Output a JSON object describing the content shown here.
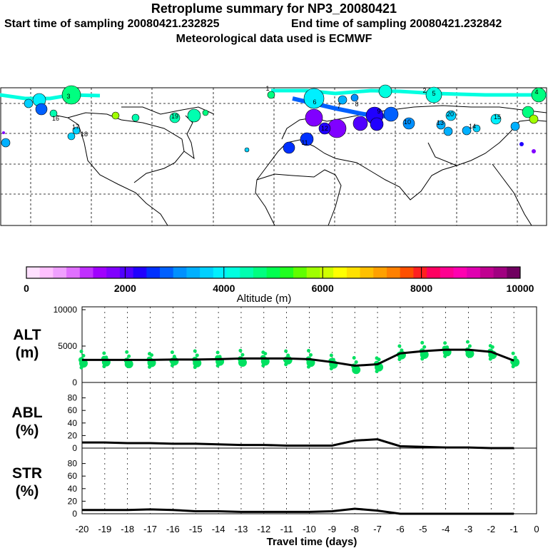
{
  "header": {
    "title": "Retroplume summary for NP3_20080421",
    "start_label": "Start time of sampling 20080421.232825",
    "end_label": "End time of sampling 20080421.232842",
    "meteo_label": "Meteorological data used is ECMWF"
  },
  "map": {
    "description_labels": [
      "1",
      "2",
      "3",
      "4",
      "5",
      "6",
      "7",
      "8",
      "9",
      "10",
      "11",
      "12",
      "13",
      "14",
      "15",
      "16",
      "17",
      "18",
      "19",
      "20"
    ]
  },
  "colorbar": {
    "title": "Altitude (m)",
    "ticks": [
      "0",
      "2000",
      "4000",
      "6000",
      "8000",
      "10000"
    ],
    "colors": [
      "#ffe0ff",
      "#ffc0ff",
      "#f0a0ff",
      "#e070ff",
      "#c030ff",
      "#a000ff",
      "#8000ff",
      "#5000ff",
      "#2000ff",
      "#0030ff",
      "#0060ff",
      "#0090ff",
      "#00b0ff",
      "#00d0ff",
      "#00f0ff",
      "#00ffe0",
      "#00ffb0",
      "#00ff80",
      "#00ff50",
      "#20ff20",
      "#60ff00",
      "#a0ff00",
      "#d0ff00",
      "#ffff00",
      "#ffe000",
      "#ffc000",
      "#ffa000",
      "#ff8000",
      "#ff5000",
      "#ff2020",
      "#ff0060",
      "#ff0090",
      "#ff00b0",
      "#e000b0",
      "#c00090",
      "#a00080",
      "#700060"
    ]
  },
  "panels": {
    "alt": {
      "label_line1": "ALT",
      "label_line2": "(m)",
      "yticks": [
        "10000",
        "5000",
        "0"
      ]
    },
    "abl": {
      "label_line1": "ABL",
      "label_line2": "(%)",
      "yticks": [
        "80",
        "60",
        "40",
        "20",
        "0"
      ]
    },
    "str": {
      "label_line1": "STR",
      "label_line2": "(%)",
      "yticks": [
        "80",
        "60",
        "40",
        "20",
        "0"
      ]
    }
  },
  "xaxis": {
    "label": "Travel time (days)",
    "ticks": [
      "-20",
      "-19",
      "-18",
      "-17",
      "-16",
      "-15",
      "-14",
      "-13",
      "-12",
      "-11",
      "-10",
      "-9",
      "-8",
      "-7",
      "-6",
      "-5",
      "-4",
      "-3",
      "-2",
      "-1",
      "0"
    ]
  },
  "chart_data": [
    {
      "type": "line",
      "title": "ALT (m)",
      "xlabel": "Travel time (days)",
      "ylabel": "ALT (m)",
      "xlim": [
        -20,
        0
      ],
      "ylim": [
        0,
        10000
      ],
      "x": [
        -20,
        -19,
        -18,
        -17,
        -16,
        -15,
        -14,
        -13,
        -12,
        -11,
        -10,
        -9,
        -8,
        -7,
        -6,
        -5,
        -4,
        -3,
        -2,
        -1
      ],
      "series": [
        {
          "name": "mean altitude",
          "values": [
            3100,
            3100,
            3100,
            3100,
            3150,
            3150,
            3200,
            3300,
            3300,
            3300,
            3200,
            2800,
            2300,
            2500,
            4000,
            4300,
            4500,
            4500,
            4200,
            3000
          ]
        }
      ]
    },
    {
      "type": "line",
      "title": "ABL (%)",
      "xlabel": "Travel time (days)",
      "ylabel": "ABL (%)",
      "xlim": [
        -20,
        0
      ],
      "ylim": [
        0,
        100
      ],
      "x": [
        -20,
        -19,
        -18,
        -17,
        -16,
        -15,
        -14,
        -13,
        -12,
        -11,
        -10,
        -9,
        -8,
        -7,
        -6,
        -5,
        -4,
        -3,
        -2,
        -1
      ],
      "series": [
        {
          "name": "ABL fraction",
          "values": [
            9,
            9,
            8,
            8,
            7,
            7,
            6,
            5,
            5,
            4,
            4,
            4,
            12,
            14,
            3,
            2,
            1,
            1,
            0,
            0
          ]
        }
      ]
    },
    {
      "type": "line",
      "title": "STR (%)",
      "xlabel": "Travel time (days)",
      "ylabel": "STR (%)",
      "xlim": [
        -20,
        0
      ],
      "ylim": [
        0,
        100
      ],
      "x": [
        -20,
        -19,
        -18,
        -17,
        -16,
        -15,
        -14,
        -13,
        -12,
        -11,
        -10,
        -9,
        -8,
        -7,
        -6,
        -5,
        -4,
        -3,
        -2,
        -1
      ],
      "series": [
        {
          "name": "stratosphere fraction",
          "values": [
            6,
            6,
            6,
            7,
            6,
            4,
            4,
            3,
            3,
            3,
            3,
            4,
            8,
            5,
            0,
            0,
            0,
            0,
            0,
            0
          ]
        }
      ]
    }
  ]
}
